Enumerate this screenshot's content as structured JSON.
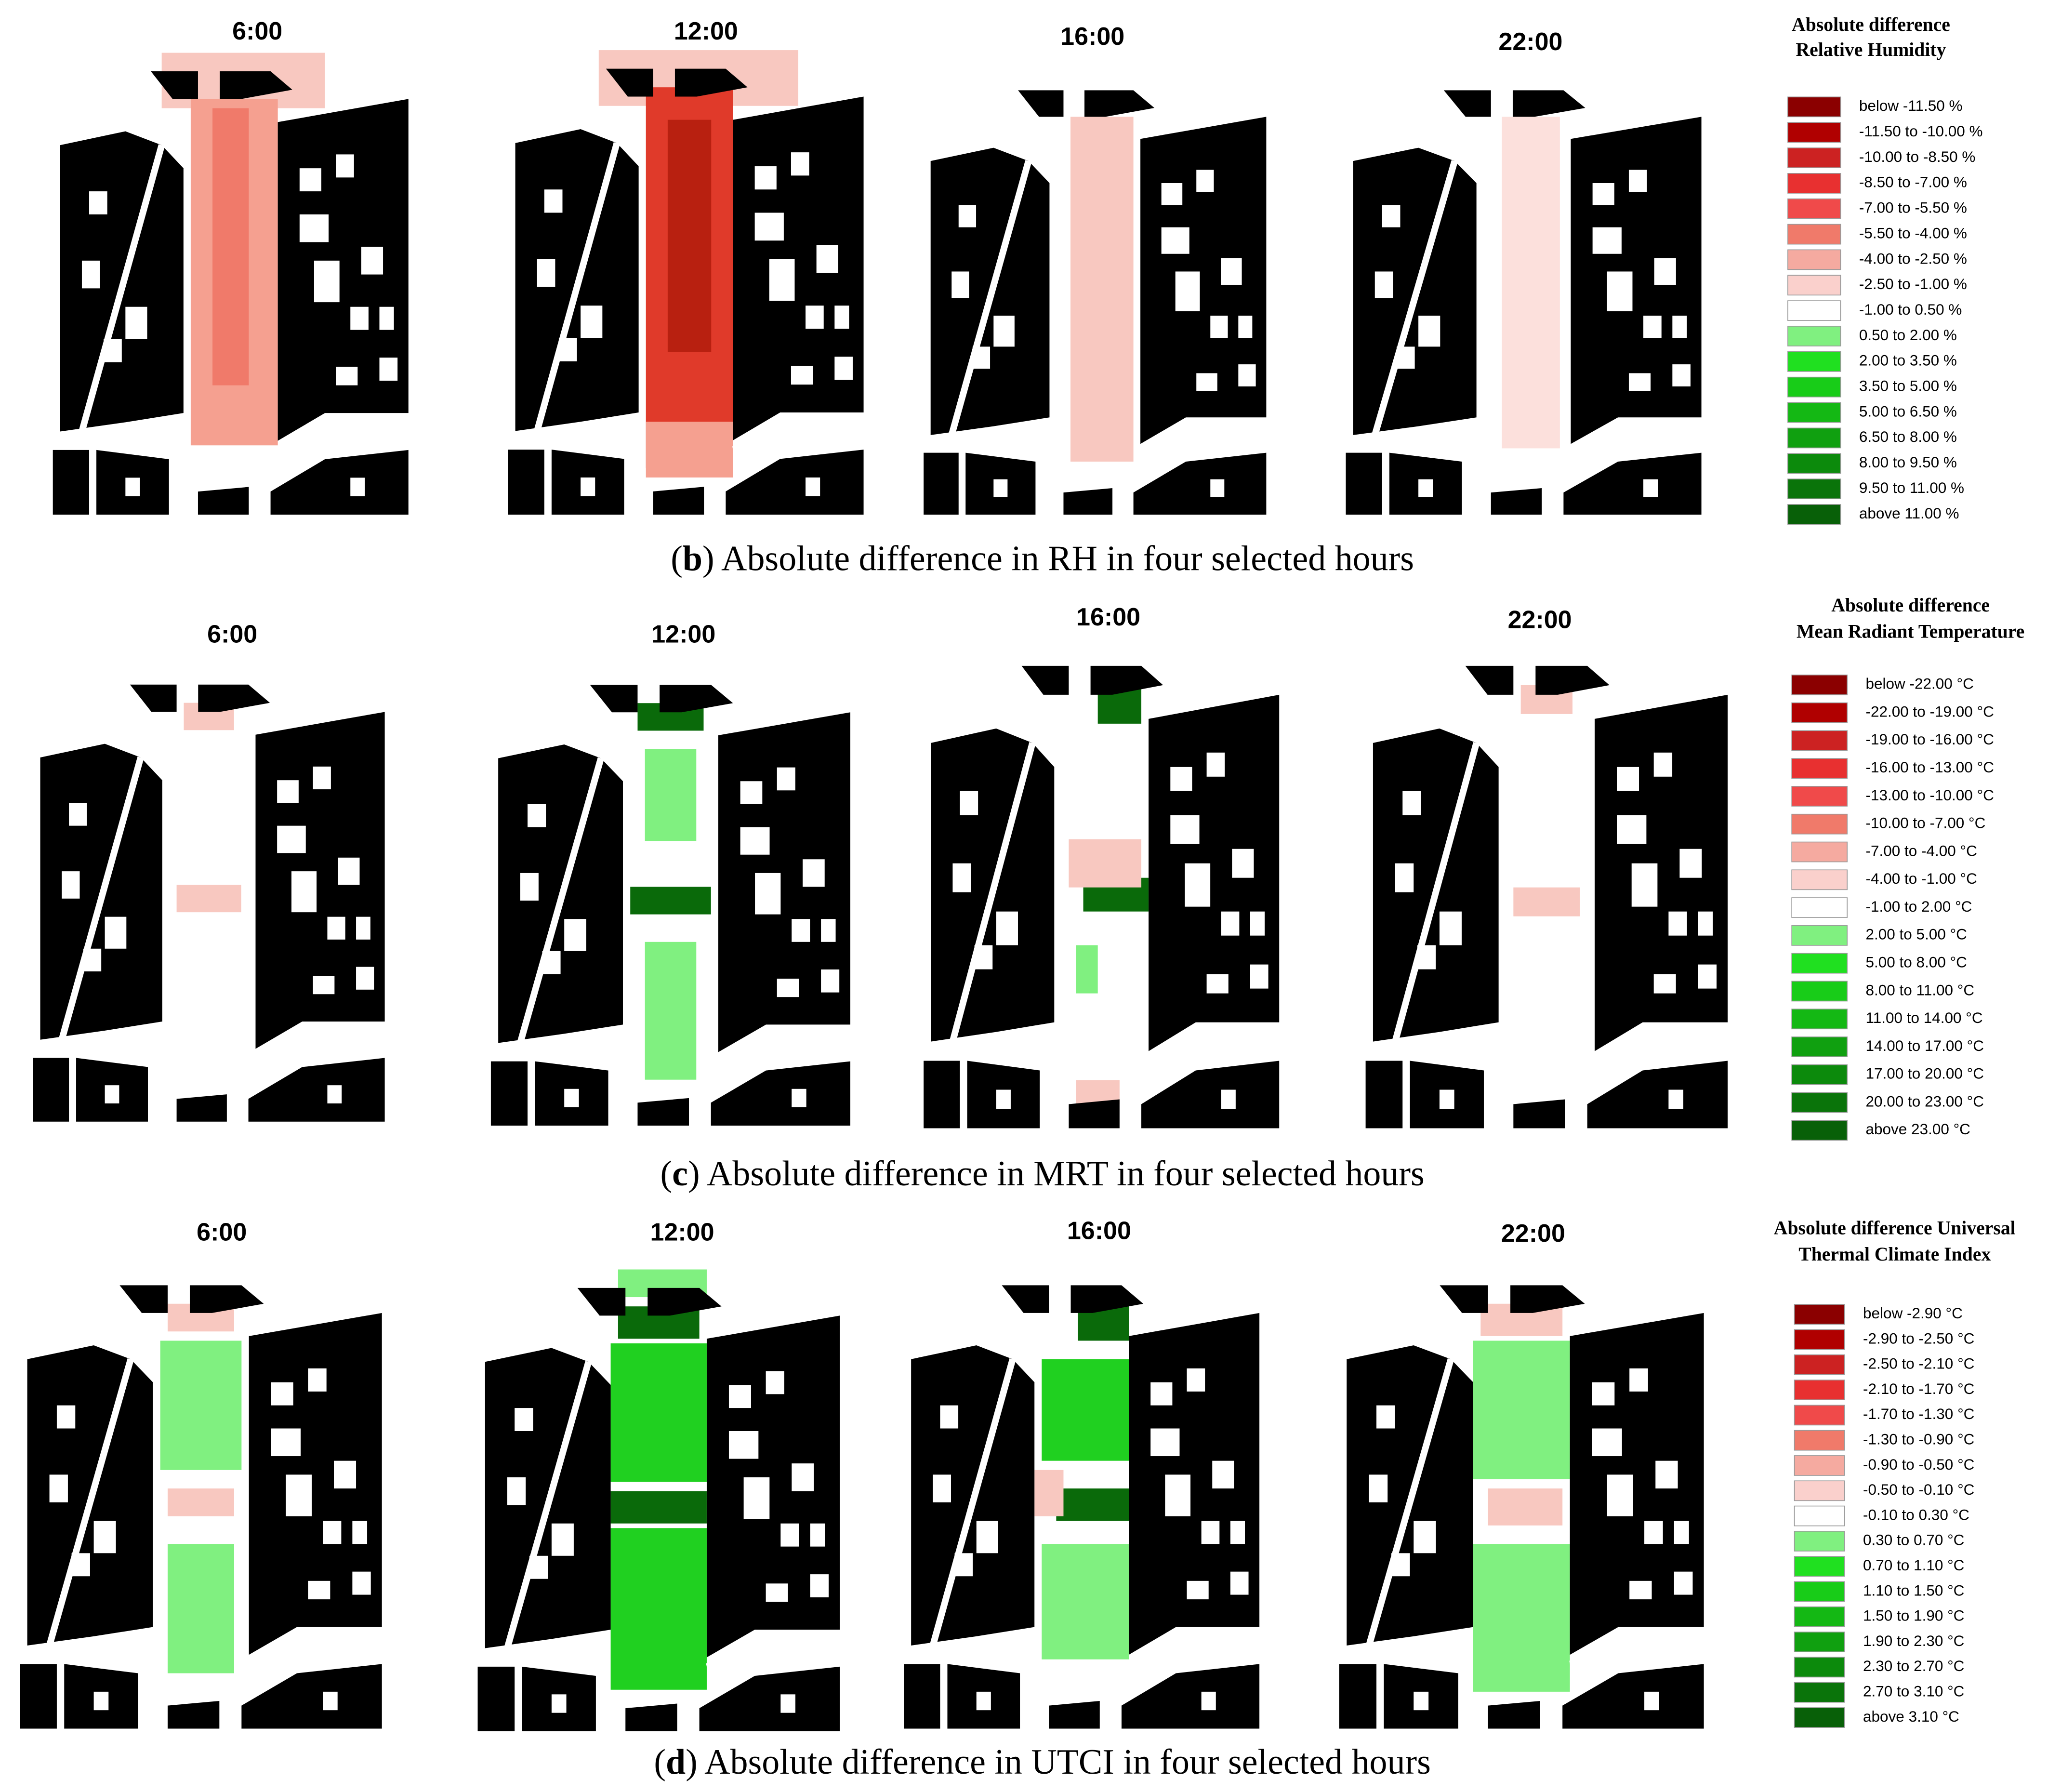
{
  "panels": [
    {
      "caption": [
        "(",
        "b",
        ") Absolute difference in RH in four selected hours"
      ],
      "hours": [
        "6:00",
        "12:00",
        "16:00",
        "22:00"
      ],
      "legend": {
        "title": [
          "Absolute difference",
          "Relative Humidity"
        ],
        "items": [
          {
            "label": "below -11.50 %",
            "color": "#8b0000"
          },
          {
            "label": "-11.50 to -10.00 %",
            "color": "#b00000"
          },
          {
            "label": "-10.00 to -8.50 %",
            "color": "#cc2222"
          },
          {
            "label": "-8.50 to -7.00 %",
            "color": "#e83030"
          },
          {
            "label": "-7.00 to -5.50 %",
            "color": "#f04a4a"
          },
          {
            "label": "-5.50 to -4.00 %",
            "color": "#f07a6a"
          },
          {
            "label": "-4.00 to -2.50 %",
            "color": "#f5aaa0"
          },
          {
            "label": "-2.50 to -1.00 %",
            "color": "#fad0cc"
          },
          {
            "label": "-1.00 to 0.50 %",
            "color": "#ffffff"
          },
          {
            "label": "0.50 to 2.00 %",
            "color": "#80f080"
          },
          {
            "label": "2.00 to 3.50 %",
            "color": "#20e020"
          },
          {
            "label": "3.50 to 5.00 %",
            "color": "#18cc18"
          },
          {
            "label": "5.00 to 6.50 %",
            "color": "#14b814"
          },
          {
            "label": "6.50 to 8.00 %",
            "color": "#10a010"
          },
          {
            "label": "8.00 to 9.50 %",
            "color": "#0c8a0c"
          },
          {
            "label": "9.50 to 11.00 %",
            "color": "#0a740a"
          },
          {
            "label": "above 11.00 %",
            "color": "#086008"
          }
        ]
      }
    },
    {
      "caption": [
        "(",
        "c",
        ") Absolute difference in MRT in four selected hours"
      ],
      "hours": [
        "6:00",
        "12:00",
        "16:00",
        "22:00"
      ],
      "legend": {
        "title": [
          "Absolute difference",
          "Mean Radiant Temperature"
        ],
        "items": [
          {
            "label": "below -22.00 °C",
            "color": "#8b0000"
          },
          {
            "label": "-22.00 to -19.00 °C",
            "color": "#b00000"
          },
          {
            "label": "-19.00 to -16.00 °C",
            "color": "#cc2222"
          },
          {
            "label": "-16.00 to -13.00 °C",
            "color": "#e83030"
          },
          {
            "label": "-13.00 to -10.00 °C",
            "color": "#f04a4a"
          },
          {
            "label": "-10.00 to -7.00 °C",
            "color": "#f07a6a"
          },
          {
            "label": "-7.00 to -4.00 °C",
            "color": "#f5aaa0"
          },
          {
            "label": "-4.00 to -1.00 °C",
            "color": "#fad0cc"
          },
          {
            "label": "-1.00 to 2.00 °C",
            "color": "#ffffff"
          },
          {
            "label": "2.00 to 5.00 °C",
            "color": "#80f080"
          },
          {
            "label": "5.00 to 8.00 °C",
            "color": "#20e020"
          },
          {
            "label": "8.00 to 11.00 °C",
            "color": "#18cc18"
          },
          {
            "label": "11.00 to 14.00 °C",
            "color": "#14b814"
          },
          {
            "label": "14.00 to 17.00 °C",
            "color": "#10a010"
          },
          {
            "label": "17.00 to 20.00 °C",
            "color": "#0c8a0c"
          },
          {
            "label": "20.00 to 23.00 °C",
            "color": "#0a740a"
          },
          {
            "label": "above 23.00 °C",
            "color": "#086008"
          }
        ]
      }
    },
    {
      "caption": [
        "(",
        "d",
        ") Absolute difference in UTCI in four selected hours"
      ],
      "hours": [
        "6:00",
        "12:00",
        "16:00",
        "22:00"
      ],
      "legend": {
        "title": [
          "Absolute difference Universal",
          "Thermal Climate Index"
        ],
        "items": [
          {
            "label": "below -2.90 °C",
            "color": "#8b0000"
          },
          {
            "label": "-2.90 to -2.50 °C",
            "color": "#b00000"
          },
          {
            "label": "-2.50 to -2.10 °C",
            "color": "#cc2222"
          },
          {
            "label": "-2.10 to -1.70 °C",
            "color": "#e83030"
          },
          {
            "label": "-1.70 to -1.30 °C",
            "color": "#f04a4a"
          },
          {
            "label": "-1.30 to -0.90 °C",
            "color": "#f07a6a"
          },
          {
            "label": "-0.90 to -0.50 °C",
            "color": "#f5aaa0"
          },
          {
            "label": "-0.50 to -0.10 °C",
            "color": "#fad0cc"
          },
          {
            "label": "-0.10 to 0.30 °C",
            "color": "#ffffff"
          },
          {
            "label": "0.30 to 0.70 °C",
            "color": "#80f080"
          },
          {
            "label": "0.70 to 1.10 °C",
            "color": "#20e020"
          },
          {
            "label": "1.10 to 1.50 °C",
            "color": "#18cc18"
          },
          {
            "label": "1.50 to 1.90 °C",
            "color": "#14b814"
          },
          {
            "label": "1.90 to 2.30 °C",
            "color": "#10a010"
          },
          {
            "label": "2.30 to 2.70 °C",
            "color": "#0c8a0c"
          },
          {
            "label": "2.70 to 3.10 °C",
            "color": "#0a740a"
          },
          {
            "label": "above 3.10 °C",
            "color": "#086008"
          }
        ]
      }
    }
  ]
}
